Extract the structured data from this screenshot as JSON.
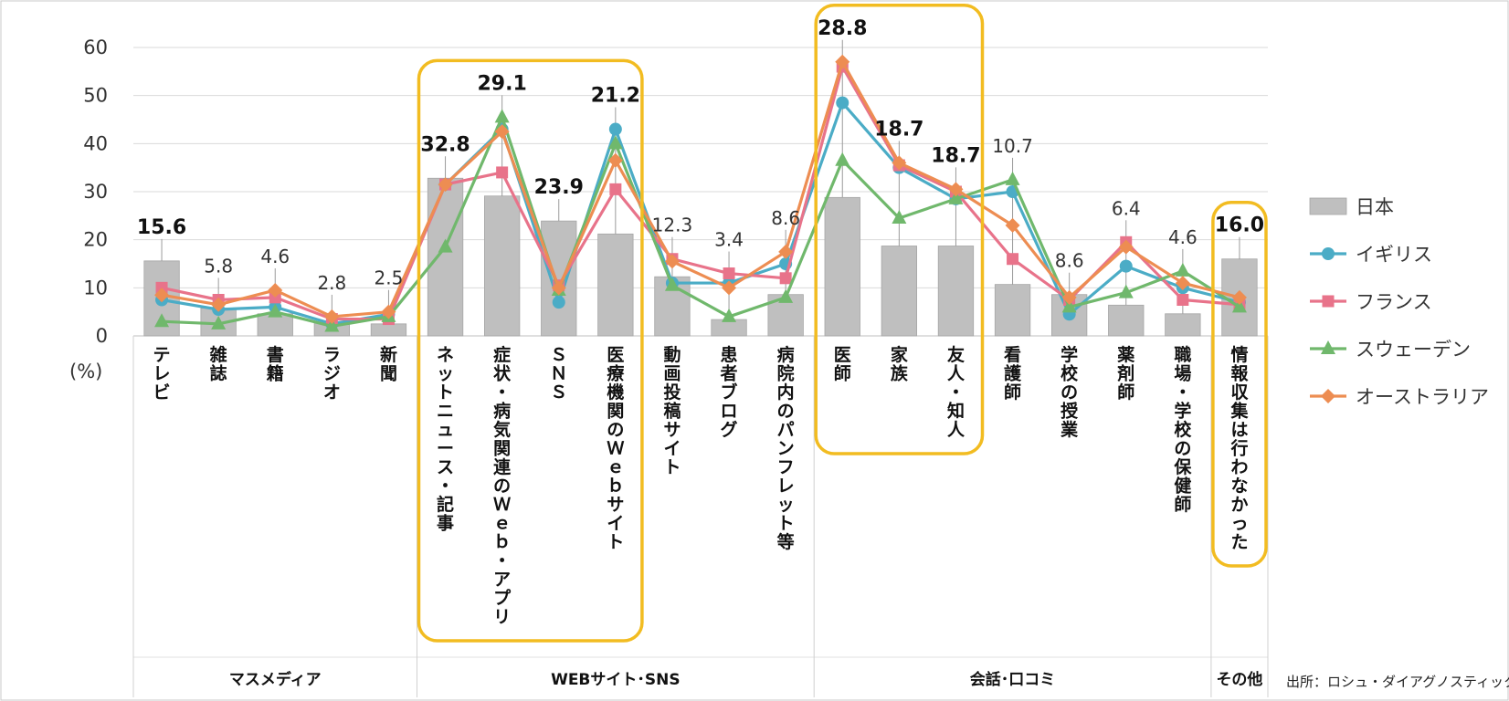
{
  "chart_data": {
    "type": "bar+line",
    "y_axis": {
      "min": 0,
      "max": 60,
      "step": 10,
      "unit_label": "(%)"
    },
    "categories": [
      "テレビ",
      "雑誌",
      "書籍",
      "ラジオ",
      "新聞",
      "ネットニュース・記事",
      "症状・病気関連のWeb・アプリ",
      "SNS",
      "医療機関のWebサイト",
      "動画投稿サイト",
      "患者ブログ",
      "病院内のパンフレット等",
      "医師",
      "家族",
      "友人・知人",
      "看護師",
      "学校の授業",
      "薬剤師",
      "職場・学校の保健師",
      "情報収集は行わなかった"
    ],
    "category_labels_vertical": [
      "テレビ",
      "雑誌",
      "書籍",
      "ラジオ",
      "新聞",
      "ネットニュース・記事",
      "症状・病気関連のＷｅｂ・アプリ",
      "ＳＮＳ",
      "医療機関のＷｅｂサイト",
      "動画投稿サイト",
      "患者ブログ",
      "病院内のパンフレット等",
      "医師",
      "家族",
      "友人・知人",
      "看護師",
      "学校の授業",
      "薬剤師",
      "職場・学校の保健師",
      "情報収集は行わなかった"
    ],
    "groups": [
      {
        "label": "マスメディア",
        "from": 0,
        "to": 4
      },
      {
        "label": "WEBサイト･SNS",
        "from": 5,
        "to": 11
      },
      {
        "label": "会話･口コミ",
        "from": 12,
        "to": 18
      },
      {
        "label": "その他",
        "from": 19,
        "to": 19
      }
    ],
    "bar_series": {
      "name": "日本",
      "color": "#bfbfbf",
      "values": [
        15.6,
        5.8,
        4.6,
        2.8,
        2.5,
        32.8,
        29.1,
        23.9,
        21.2,
        12.3,
        3.4,
        8.6,
        28.8,
        18.7,
        18.7,
        10.7,
        8.6,
        6.4,
        4.6,
        16.0
      ],
      "labels": [
        "15.6",
        "5.8",
        "4.6",
        "2.8",
        "2.5",
        "32.8",
        "29.1",
        "23.9",
        "21.2",
        "12.3",
        "3.4",
        "8.6",
        "28.8",
        "18.7",
        "18.7",
        "10.7",
        "8.6",
        "6.4",
        "4.6",
        "16.0"
      ],
      "label_bold": [
        true,
        false,
        false,
        false,
        false,
        true,
        true,
        true,
        true,
        false,
        false,
        false,
        true,
        true,
        true,
        false,
        false,
        false,
        false,
        true
      ]
    },
    "line_series": [
      {
        "name": "イギリス",
        "color": "#4bacc6",
        "marker": "circle",
        "values": [
          7.5,
          5.5,
          6.0,
          2.5,
          4.5,
          31.5,
          43.0,
          7.0,
          43.0,
          11.0,
          11.0,
          15.0,
          48.5,
          35.0,
          28.5,
          30.0,
          4.5,
          14.5,
          10.0,
          7.0
        ]
      },
      {
        "name": "フランス",
        "color": "#e8738a",
        "marker": "square",
        "values": [
          10.0,
          7.5,
          8.0,
          3.5,
          3.5,
          31.5,
          34.0,
          10.5,
          30.5,
          16.0,
          13.0,
          12.0,
          56.0,
          35.5,
          30.0,
          16.0,
          7.5,
          19.5,
          7.5,
          6.5
        ]
      },
      {
        "name": "スウェーデン",
        "color": "#70b86c",
        "marker": "triangle",
        "values": [
          3.0,
          2.5,
          5.0,
          2.0,
          4.0,
          18.5,
          45.5,
          9.5,
          40.0,
          10.5,
          4.0,
          8.0,
          36.5,
          24.5,
          28.5,
          32.5,
          6.0,
          9.0,
          13.5,
          6.0
        ]
      },
      {
        "name": "オーストラリア",
        "color": "#ed8d52",
        "marker": "diamond",
        "values": [
          8.5,
          6.5,
          9.5,
          4.0,
          5.0,
          31.5,
          42.5,
          10.0,
          36.5,
          15.5,
          10.0,
          17.5,
          57.0,
          36.0,
          30.5,
          23.0,
          8.0,
          18.5,
          11.0,
          8.0
        ]
      }
    ],
    "highlight_boxes": [
      {
        "from": 5,
        "to": 8
      },
      {
        "from": 12,
        "to": 14
      },
      {
        "from": 19,
        "to": 19
      }
    ],
    "highlight_color": "#f2bc21",
    "gridlines": true,
    "legend_position": "right"
  },
  "source_note": "出所：ロシュ・ダイアグノスティックス"
}
